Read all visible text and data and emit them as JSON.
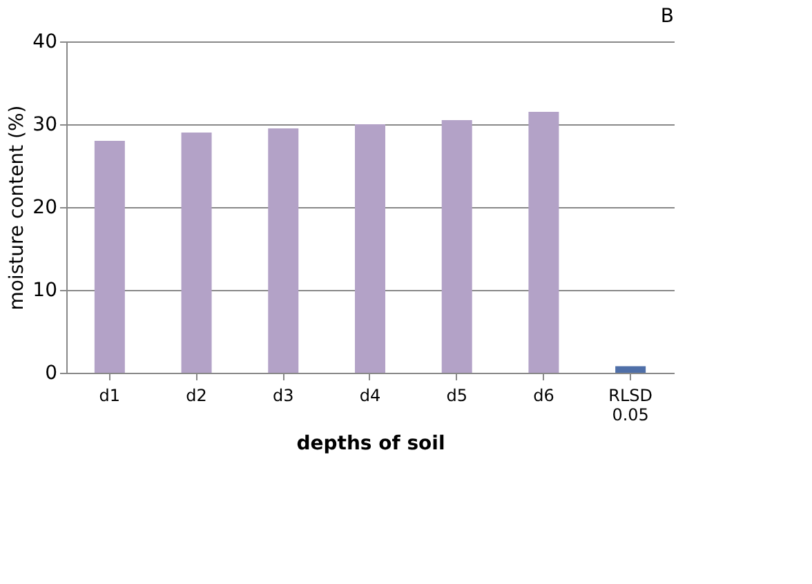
{
  "chart_data": {
    "type": "bar",
    "title": "B",
    "xlabel": "depths of soil",
    "ylabel": "moisture content (%)",
    "categories": [
      "d1",
      "d2",
      "d3",
      "d4",
      "d5",
      "d6",
      "RLSD 0.05"
    ],
    "values": [
      28,
      29,
      29.5,
      30,
      30.5,
      31.5,
      0.8
    ],
    "colors": [
      "#b3a2c7",
      "#b3a2c7",
      "#b3a2c7",
      "#b3a2c7",
      "#b3a2c7",
      "#b3a2c7",
      "#4f6fa8"
    ],
    "ylim": [
      0,
      40
    ],
    "yticks": [
      0,
      10,
      20,
      30,
      40
    ],
    "grid": "y"
  }
}
